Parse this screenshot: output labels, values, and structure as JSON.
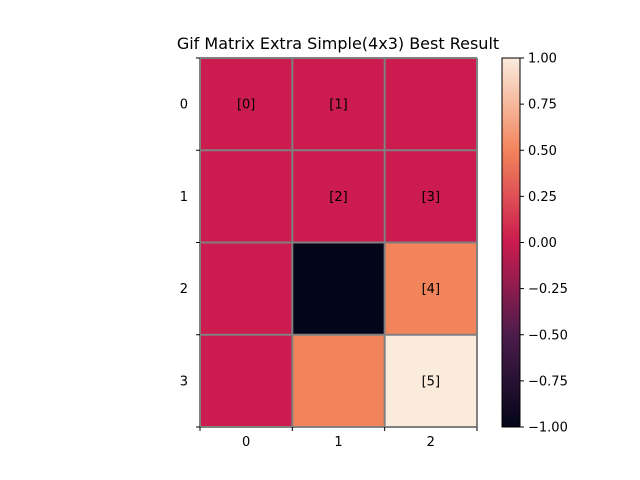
{
  "chart_data": {
    "type": "heatmap",
    "title": "Gif Matrix Extra Simple(4x3) Best Result",
    "xlabel": "",
    "ylabel": "",
    "x_ticks": [
      "0",
      "1",
      "2"
    ],
    "y_ticks": [
      "0",
      "1",
      "2",
      "3"
    ],
    "values": [
      [
        0,
        0,
        0
      ],
      [
        0,
        0,
        0
      ],
      [
        0,
        -1,
        0.5
      ],
      [
        0,
        0.5,
        1
      ]
    ],
    "annotations": [
      [
        "[0]",
        "[1]",
        ""
      ],
      [
        "",
        "[2]",
        "[3]"
      ],
      [
        "",
        "",
        "[4]"
      ],
      [
        "",
        "",
        "[5]"
      ]
    ],
    "colorbar": {
      "vmin": -1,
      "vmax": 1,
      "ticks": [
        1.0,
        0.75,
        0.5,
        0.25,
        0.0,
        -0.25,
        -0.5,
        -0.75,
        -1.0
      ],
      "tick_labels": [
        "1.00",
        "0.75",
        "0.50",
        "0.25",
        "0.00",
        "−0.25",
        "−0.50",
        "−0.75",
        "−1.00"
      ],
      "colormap_stops": [
        [
          -1.0,
          "#03051a"
        ],
        [
          -0.5,
          "#4c1d4b"
        ],
        [
          0.0,
          "#cb1b4f"
        ],
        [
          0.5,
          "#f2845c"
        ],
        [
          1.0,
          "#faebdd"
        ]
      ]
    },
    "grid": true,
    "grid_color": "#808080"
  }
}
